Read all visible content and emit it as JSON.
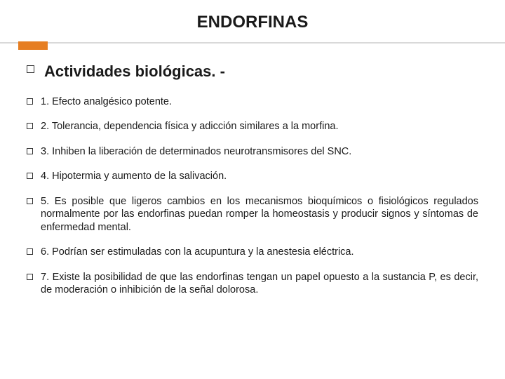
{
  "title": {
    "text": "ENDORFINAS",
    "fontsize": 24,
    "color": "#1a1a1a"
  },
  "accent": {
    "chip_color": "#e67e22",
    "line_color": "#d9d9d9"
  },
  "heading": {
    "text": "Actividades biológicas. -",
    "fontsize": 22,
    "color": "#1a1a1a",
    "bullet_border": "#333333"
  },
  "items_style": {
    "fontsize": 14.5,
    "color": "#1a1a1a",
    "bullet_border": "#333333",
    "gap": 17
  },
  "items": [
    {
      "text": "1. Efecto analgésico potente.",
      "justify": false
    },
    {
      "text": "2. Tolerancia, dependencia física y adicción similares a la morfina.",
      "justify": false
    },
    {
      "text": "3. Inhiben la liberación de determinados neurotransmisores del SNC.",
      "justify": false
    },
    {
      "text": "4. Hipotermia y aumento de la salivación.",
      "justify": false
    },
    {
      "text": "5. Es posible que ligeros cambios en los mecanismos bioquímicos o fisiológicos regulados normalmente por las endorfinas puedan romper la homeostasis y producir signos y síntomas de enfermedad mental.",
      "justify": true
    },
    {
      "text": "6. Podrían ser estimuladas con la acupuntura y la anestesia eléctrica.",
      "justify": false
    },
    {
      "text": "7. Existe la posibilidad de que las endorfinas tengan un papel opuesto a la sustancia P, es decir, de moderación o inhibición de la señal dolorosa.",
      "justify": true
    }
  ]
}
